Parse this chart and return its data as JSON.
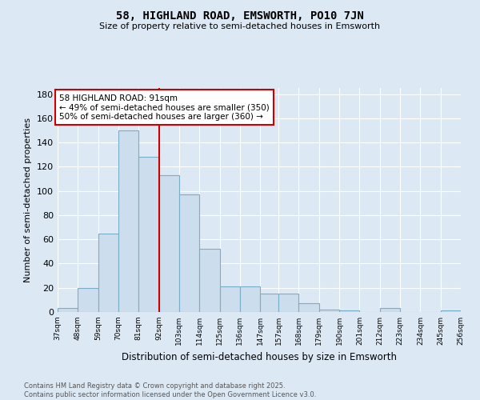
{
  "title1": "58, HIGHLAND ROAD, EMSWORTH, PO10 7JN",
  "title2": "Size of property relative to semi-detached houses in Emsworth",
  "xlabel": "Distribution of semi-detached houses by size in Emsworth",
  "ylabel": "Number of semi-detached properties",
  "bins": [
    37,
    48,
    59,
    70,
    81,
    92,
    103,
    114,
    125,
    136,
    147,
    157,
    168,
    179,
    190,
    201,
    212,
    223,
    234,
    245,
    256
  ],
  "counts": [
    3,
    20,
    65,
    150,
    128,
    113,
    97,
    52,
    21,
    21,
    15,
    15,
    7,
    2,
    1,
    0,
    3,
    0,
    0,
    1
  ],
  "bar_facecolor": "#ccdded",
  "bar_edgecolor": "#7aaec8",
  "vline_x": 92,
  "vline_color": "#cc0000",
  "annotation_text": "58 HIGHLAND ROAD: 91sqm\n← 49% of semi-detached houses are smaller (350)\n50% of semi-detached houses are larger (360) →",
  "annotation_box_color": "#ffffff",
  "annotation_box_edge": "#cc0000",
  "ylim": [
    0,
    185
  ],
  "yticks": [
    0,
    20,
    40,
    60,
    80,
    100,
    120,
    140,
    160,
    180
  ],
  "background_color": "#dce9f5",
  "footer_text": "Contains HM Land Registry data © Crown copyright and database right 2025.\nContains public sector information licensed under the Open Government Licence v3.0.",
  "tick_labels": [
    "37sqm",
    "48sqm",
    "59sqm",
    "70sqm",
    "81sqm",
    "92sqm",
    "103sqm",
    "114sqm",
    "125sqm",
    "136sqm",
    "147sqm",
    "157sqm",
    "168sqm",
    "179sqm",
    "190sqm",
    "201sqm",
    "212sqm",
    "223sqm",
    "234sqm",
    "245sqm",
    "256sqm"
  ]
}
